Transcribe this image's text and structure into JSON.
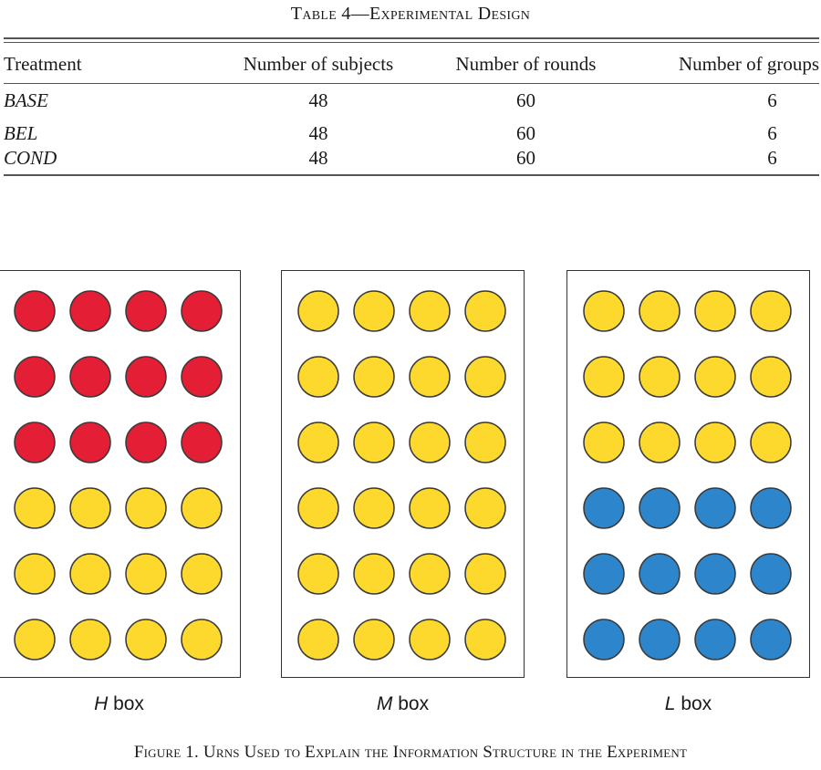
{
  "table": {
    "caption": "Table 4—Experimental Design",
    "headers": [
      "Treatment",
      "Number of subjects",
      "Number of rounds",
      "Number of groups"
    ],
    "rows": [
      {
        "treatment": "BASE",
        "subjects": "48",
        "rounds": "60",
        "groups": "6"
      },
      {
        "treatment": "BEL",
        "subjects": "48",
        "rounds": "60",
        "groups": "6"
      },
      {
        "treatment": "COND",
        "subjects": "48",
        "rounds": "60",
        "groups": "6"
      }
    ]
  },
  "colors": {
    "red": "#e31e35",
    "yellow": "#fcd92c",
    "blue": "#2d86cb",
    "ball_stroke": "#3a3a3a"
  },
  "urns": [
    {
      "letter": "H",
      "suffix": " box",
      "rows": [
        "red",
        "red",
        "red",
        "yellow",
        "yellow",
        "yellow"
      ]
    },
    {
      "letter": "M",
      "suffix": " box",
      "rows": [
        "yellow",
        "yellow",
        "yellow",
        "yellow",
        "yellow",
        "yellow"
      ]
    },
    {
      "letter": "L",
      "suffix": " box",
      "rows": [
        "yellow",
        "yellow",
        "yellow",
        "blue",
        "blue",
        "blue"
      ]
    }
  ],
  "figure": {
    "caption": "Figure 1. Urns Used to Explain the Information Structure in the Experiment"
  }
}
